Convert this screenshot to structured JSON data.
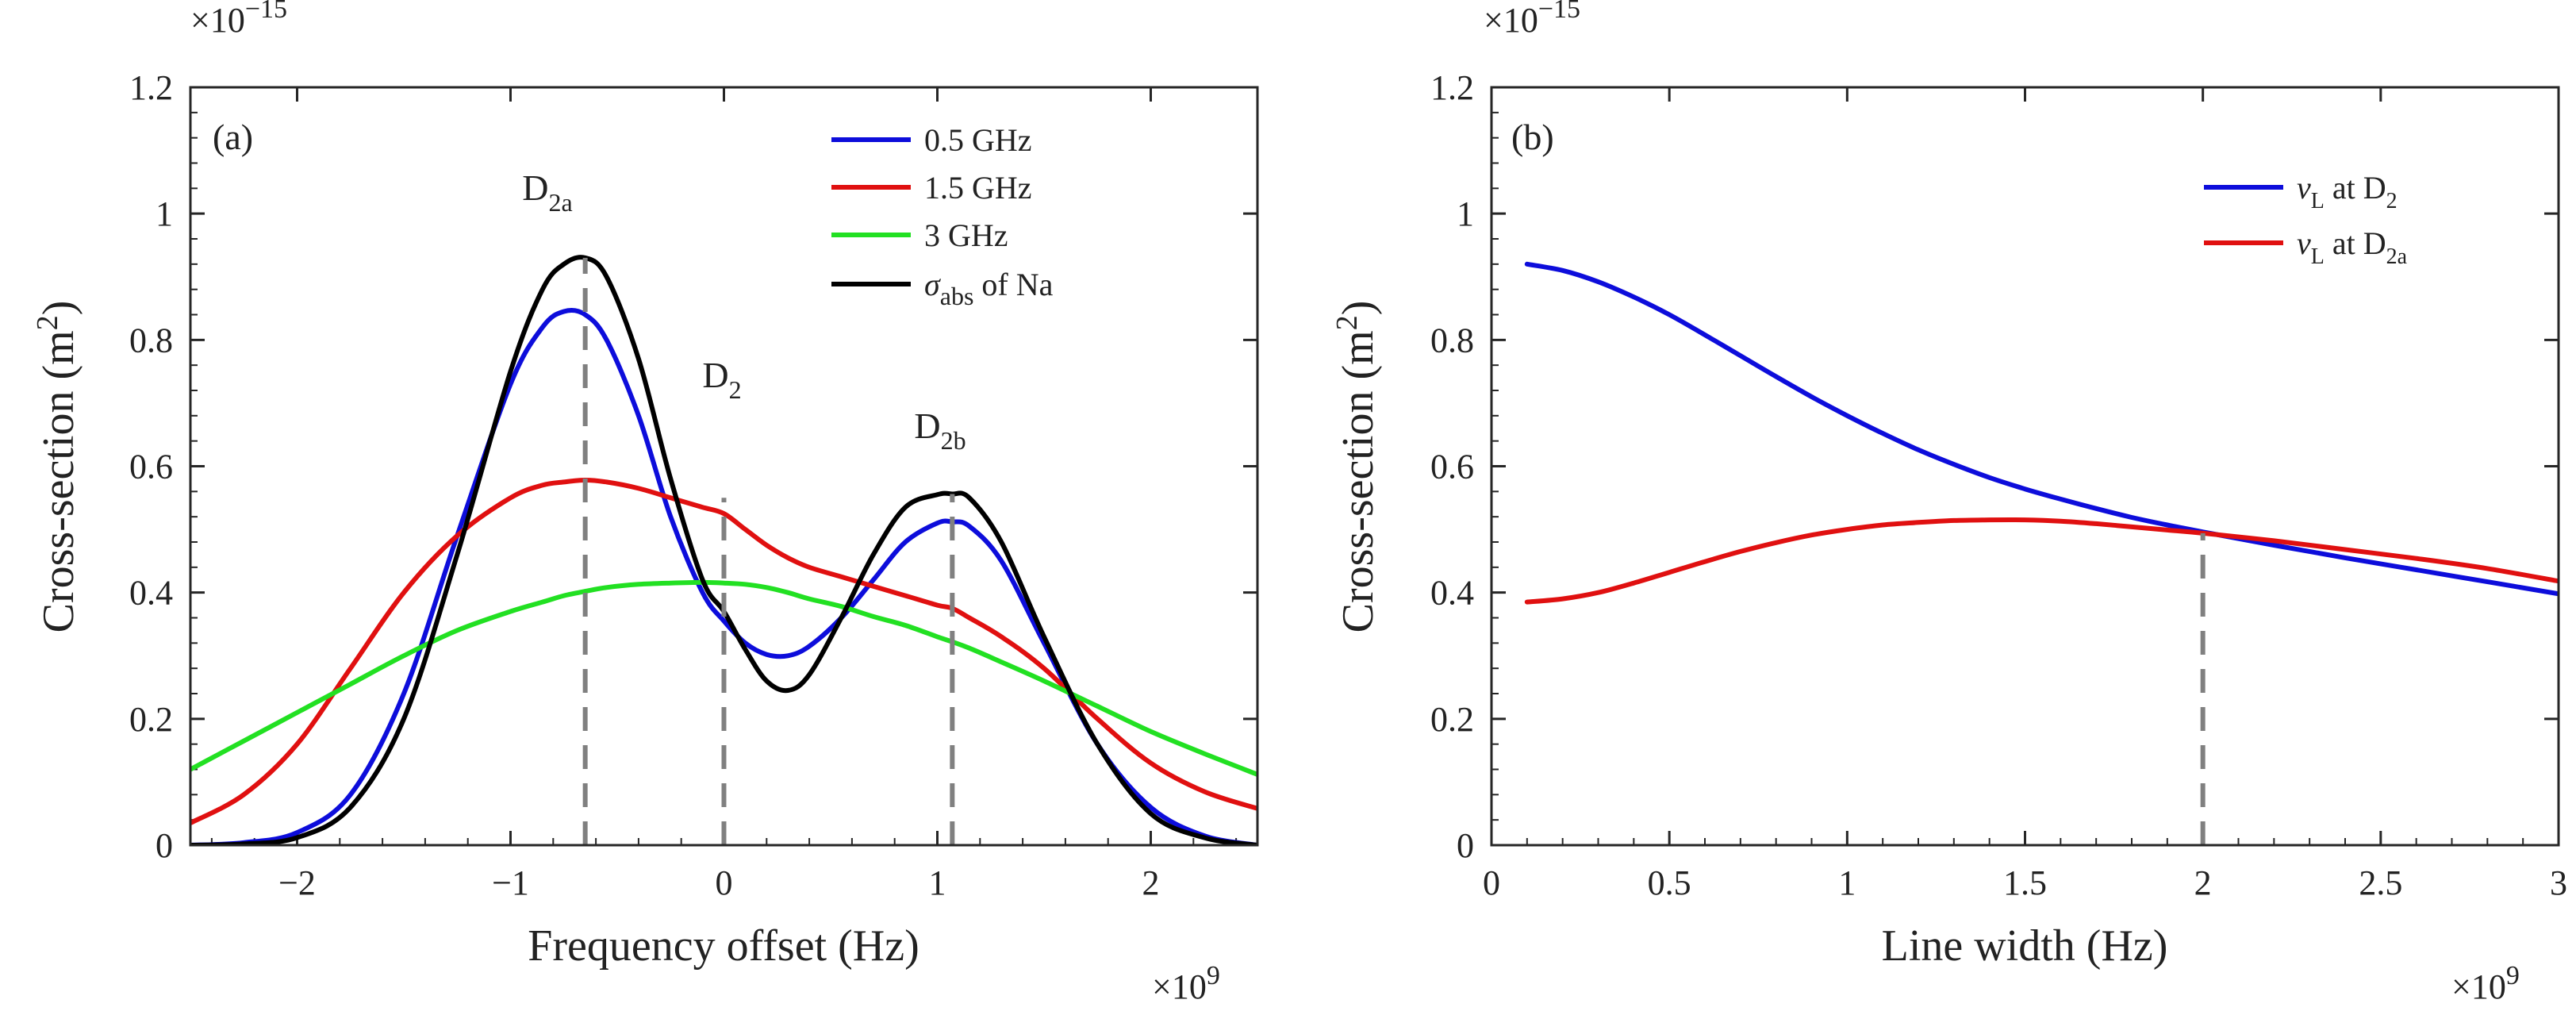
{
  "chart_data": [
    {
      "type": "line",
      "panel_label": "(a)",
      "xlabel": "Frequency offset (Hz)",
      "x_multiplier": "×10",
      "x_multiplier_exp": "9",
      "ylabel": "Cross-section (m",
      "ylabel_sup": "2",
      "ylabel_tail": ")",
      "y_multiplier": "×10",
      "y_multiplier_exp": "−15",
      "xlim": [
        -2.5,
        2.5
      ],
      "ylim": [
        0,
        1.2
      ],
      "xticks": [
        -2,
        -1,
        0,
        1,
        2
      ],
      "xtick_labels": [
        "−2",
        "−1",
        "0",
        "1",
        "2"
      ],
      "yticks": [
        0,
        0.2,
        0.4,
        0.6,
        0.8,
        1,
        1.2
      ],
      "ytick_labels": [
        "0",
        "0.2",
        "0.4",
        "0.6",
        "0.8",
        "1",
        "1.2"
      ],
      "legend_position": "top-right",
      "legend": [
        "0.5 GHz",
        "1.5 GHz",
        "3 GHz",
        "σabs of Na"
      ],
      "legend_sigma": "σ",
      "legend_sigma_sub": "abs",
      "legend_sigma_tail": " of Na",
      "x": [
        -2.5,
        -2.25,
        -2.0,
        -1.75,
        -1.5,
        -1.25,
        -1.0,
        -0.85,
        -0.75,
        -0.65,
        -0.55,
        -0.4,
        -0.25,
        -0.1,
        0.0,
        0.1,
        0.2,
        0.3,
        0.4,
        0.55,
        0.7,
        0.85,
        1.0,
        1.07,
        1.15,
        1.3,
        1.5,
        1.75,
        2.0,
        2.25,
        2.5
      ],
      "series": [
        {
          "name": "0.5 GHz",
          "color": "#0d0ddb",
          "values": [
            0.0,
            0.004,
            0.02,
            0.08,
            0.24,
            0.49,
            0.73,
            0.82,
            0.845,
            0.84,
            0.8,
            0.68,
            0.52,
            0.4,
            0.355,
            0.32,
            0.302,
            0.3,
            0.315,
            0.36,
            0.42,
            0.48,
            0.51,
            0.512,
            0.505,
            0.45,
            0.32,
            0.16,
            0.06,
            0.015,
            0.0
          ]
        },
        {
          "name": "1.5 GHz",
          "color": "#e01010",
          "values": [
            0.035,
            0.08,
            0.16,
            0.28,
            0.4,
            0.49,
            0.55,
            0.57,
            0.575,
            0.578,
            0.575,
            0.565,
            0.55,
            0.535,
            0.525,
            0.5,
            0.475,
            0.455,
            0.44,
            0.425,
            0.41,
            0.395,
            0.38,
            0.375,
            0.36,
            0.33,
            0.28,
            0.2,
            0.13,
            0.085,
            0.058
          ]
        },
        {
          "name": "3 GHz",
          "color": "#22e022",
          "values": [
            0.12,
            0.165,
            0.21,
            0.255,
            0.3,
            0.34,
            0.37,
            0.385,
            0.395,
            0.402,
            0.408,
            0.413,
            0.415,
            0.416,
            0.415,
            0.413,
            0.408,
            0.4,
            0.39,
            0.378,
            0.362,
            0.348,
            0.33,
            0.322,
            0.312,
            0.29,
            0.26,
            0.22,
            0.18,
            0.145,
            0.112
          ]
        },
        {
          "name": "σabs of Na",
          "color": "#000000",
          "values": [
            0.0,
            0.002,
            0.012,
            0.06,
            0.2,
            0.46,
            0.75,
            0.88,
            0.92,
            0.93,
            0.9,
            0.77,
            0.58,
            0.42,
            0.37,
            0.31,
            0.26,
            0.245,
            0.27,
            0.36,
            0.46,
            0.535,
            0.555,
            0.556,
            0.55,
            0.48,
            0.33,
            0.16,
            0.05,
            0.012,
            0.0
          ]
        }
      ],
      "vlines": [
        {
          "x": -0.65,
          "y_top": 0.93,
          "label": "D",
          "label_sub": "2a"
        },
        {
          "x": 0.0,
          "y_top": 0.55,
          "label": "D",
          "label_sub": "2"
        },
        {
          "x": 1.07,
          "y_top": 0.556,
          "label": "D",
          "label_sub": "2b"
        }
      ]
    },
    {
      "type": "line",
      "panel_label": "(b)",
      "xlabel": "Line width (Hz)",
      "x_multiplier": "×10",
      "x_multiplier_exp": "9",
      "ylabel": "Cross-section (m",
      "ylabel_sup": "2",
      "ylabel_tail": ")",
      "y_multiplier": "×10",
      "y_multiplier_exp": "−15",
      "xlim": [
        0,
        3
      ],
      "ylim": [
        0,
        1.2
      ],
      "xticks": [
        0,
        0.5,
        1,
        1.5,
        2,
        2.5,
        3
      ],
      "xtick_labels": [
        "0",
        "0.5",
        "1",
        "1.5",
        "2",
        "2.5",
        "3"
      ],
      "yticks": [
        0,
        0.2,
        0.4,
        0.6,
        0.8,
        1,
        1.2
      ],
      "ytick_labels": [
        "0",
        "0.2",
        "0.4",
        "0.6",
        "0.8",
        "1",
        "1.2"
      ],
      "legend_position": "top-right",
      "legend": [
        "νL at D2",
        "νL at D2a"
      ],
      "x": [
        0.1,
        0.2,
        0.3,
        0.4,
        0.5,
        0.6,
        0.7,
        0.8,
        0.9,
        1.0,
        1.1,
        1.2,
        1.3,
        1.4,
        1.5,
        1.6,
        1.7,
        1.8,
        1.9,
        2.0,
        2.2,
        2.4,
        2.6,
        2.8,
        3.0
      ],
      "series": [
        {
          "name": "νL at D2",
          "color": "#0d0ddb",
          "legend_nu": "ν",
          "legend_nu_sub": "L",
          "legend_at": " at D",
          "legend_at_sub": "2",
          "values": [
            0.92,
            0.91,
            0.892,
            0.868,
            0.84,
            0.808,
            0.775,
            0.742,
            0.71,
            0.68,
            0.652,
            0.626,
            0.603,
            0.582,
            0.564,
            0.548,
            0.533,
            0.519,
            0.507,
            0.496,
            0.475,
            0.455,
            0.436,
            0.417,
            0.398
          ]
        },
        {
          "name": "νL at D2a",
          "color": "#e01010",
          "legend_nu": "ν",
          "legend_nu_sub": "L",
          "legend_at": " at D",
          "legend_at_sub": "2a",
          "values": [
            0.385,
            0.39,
            0.4,
            0.415,
            0.432,
            0.449,
            0.465,
            0.479,
            0.491,
            0.5,
            0.507,
            0.511,
            0.514,
            0.515,
            0.515,
            0.513,
            0.509,
            0.504,
            0.499,
            0.494,
            0.482,
            0.468,
            0.454,
            0.438,
            0.418
          ]
        }
      ],
      "vlines": [
        {
          "x": 2.0,
          "y_top": 0.494,
          "label": "",
          "label_sub": ""
        }
      ]
    }
  ]
}
